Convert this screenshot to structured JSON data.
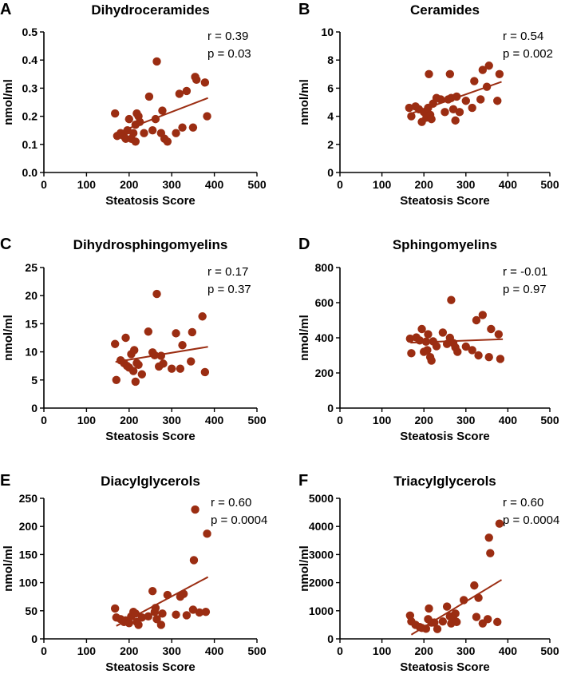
{
  "chart_data": [
    {
      "type": "scatter",
      "letter": "A",
      "title": "Dihydroceramides",
      "xlabel": "Steatosis Score",
      "ylabel": "nmol/ml",
      "xlim": [
        0,
        500
      ],
      "ylim": [
        0,
        0.5
      ],
      "xticks": [
        "0",
        "100",
        "200",
        "300",
        "400",
        "500"
      ],
      "yticks": [
        "0.0",
        "0.1",
        "0.2",
        "0.3",
        "0.4",
        "0.5"
      ],
      "stats": {
        "r": "r = 0.39",
        "p": "p = 0.03"
      },
      "color": "#9B2D12",
      "trend": [
        [
          170,
          0.14
        ],
        [
          385,
          0.265
        ]
      ],
      "points": [
        [
          167,
          0.21
        ],
        [
          172,
          0.13
        ],
        [
          180,
          0.14
        ],
        [
          187,
          0.13
        ],
        [
          192,
          0.12
        ],
        [
          196,
          0.15
        ],
        [
          200,
          0.19
        ],
        [
          205,
          0.12
        ],
        [
          210,
          0.14
        ],
        [
          215,
          0.11
        ],
        [
          215,
          0.17
        ],
        [
          218,
          0.21
        ],
        [
          222,
          0.2
        ],
        [
          225,
          0.18
        ],
        [
          235,
          0.14
        ],
        [
          247,
          0.27
        ],
        [
          255,
          0.15
        ],
        [
          262,
          0.19
        ],
        [
          265,
          0.395
        ],
        [
          275,
          0.14
        ],
        [
          278,
          0.22
        ],
        [
          283,
          0.12
        ],
        [
          290,
          0.11
        ],
        [
          310,
          0.14
        ],
        [
          318,
          0.28
        ],
        [
          325,
          0.16
        ],
        [
          335,
          0.29
        ],
        [
          350,
          0.16
        ],
        [
          355,
          0.34
        ],
        [
          358,
          0.33
        ],
        [
          378,
          0.32
        ],
        [
          383,
          0.2
        ]
      ]
    },
    {
      "type": "scatter",
      "letter": "B",
      "title": "Ceramides",
      "xlabel": "Steatosis Score",
      "ylabel": "nmol/ml",
      "xlim": [
        0,
        500
      ],
      "ylim": [
        0,
        10
      ],
      "xticks": [
        "0",
        "100",
        "200",
        "300",
        "400",
        "500"
      ],
      "yticks": [
        "0",
        "2",
        "4",
        "6",
        "8",
        "10"
      ],
      "stats": {
        "r": "r = 0.54",
        "p": "p = 0.002"
      },
      "color": "#9B2D12",
      "trend": [
        [
          170,
          4.2
        ],
        [
          385,
          6.45
        ]
      ],
      "points": [
        [
          165,
          4.6
        ],
        [
          170,
          4.0
        ],
        [
          180,
          4.7
        ],
        [
          188,
          4.5
        ],
        [
          195,
          3.6
        ],
        [
          200,
          4.3
        ],
        [
          206,
          3.9
        ],
        [
          210,
          4.6
        ],
        [
          212,
          7.0
        ],
        [
          215,
          4.1
        ],
        [
          218,
          3.8
        ],
        [
          222,
          4.9
        ],
        [
          230,
          5.3
        ],
        [
          240,
          5.2
        ],
        [
          250,
          4.3
        ],
        [
          258,
          5.2
        ],
        [
          262,
          7.0
        ],
        [
          265,
          5.3
        ],
        [
          270,
          4.5
        ],
        [
          275,
          3.7
        ],
        [
          278,
          5.4
        ],
        [
          285,
          4.3
        ],
        [
          300,
          5.1
        ],
        [
          315,
          4.6
        ],
        [
          320,
          6.5
        ],
        [
          335,
          5.2
        ],
        [
          340,
          7.3
        ],
        [
          350,
          6.1
        ],
        [
          355,
          7.6
        ],
        [
          375,
          5.1
        ],
        [
          380,
          7.0
        ]
      ]
    },
    {
      "type": "scatter",
      "letter": "C",
      "title": "Dihydrosphingomyelins",
      "xlabel": "Steatosis Score",
      "ylabel": "nmol/ml",
      "xlim": [
        0,
        500
      ],
      "ylim": [
        0,
        25
      ],
      "xticks": [
        "0",
        "100",
        "200",
        "300",
        "400",
        "500"
      ],
      "yticks": [
        "0",
        "5",
        "10",
        "15",
        "20",
        "25"
      ],
      "stats": {
        "r": "r = 0.17",
        "p": "p = 0.37"
      },
      "color": "#9B2D12",
      "trend": [
        [
          168,
          8.2
        ],
        [
          385,
          10.9
        ]
      ],
      "points": [
        [
          167,
          11.4
        ],
        [
          170,
          5.0
        ],
        [
          180,
          8.5
        ],
        [
          188,
          8.0
        ],
        [
          192,
          12.5
        ],
        [
          195,
          7.5
        ],
        [
          200,
          7.2
        ],
        [
          205,
          9.6
        ],
        [
          210,
          6.6
        ],
        [
          212,
          10.3
        ],
        [
          215,
          4.7
        ],
        [
          218,
          8.0
        ],
        [
          222,
          7.7
        ],
        [
          230,
          6.0
        ],
        [
          245,
          13.6
        ],
        [
          255,
          9.9
        ],
        [
          260,
          9.4
        ],
        [
          265,
          20.3
        ],
        [
          270,
          7.4
        ],
        [
          275,
          9.3
        ],
        [
          280,
          7.9
        ],
        [
          300,
          7.0
        ],
        [
          310,
          13.3
        ],
        [
          320,
          7.0
        ],
        [
          325,
          11.2
        ],
        [
          345,
          8.3
        ],
        [
          348,
          13.5
        ],
        [
          372,
          16.3
        ],
        [
          378,
          6.4
        ]
      ]
    },
    {
      "type": "scatter",
      "letter": "D",
      "title": "Sphingomyelins",
      "xlabel": "Steatosis Score",
      "ylabel": "nmol/ml",
      "xlim": [
        0,
        500
      ],
      "ylim": [
        0,
        800
      ],
      "xticks": [
        "0",
        "100",
        "200",
        "300",
        "400",
        "500"
      ],
      "yticks": [
        "0",
        "200",
        "400",
        "600",
        "800"
      ],
      "stats": {
        "r": "r = -0.01",
        "p": "p = 0.97"
      },
      "color": "#9B2D12",
      "trend": [
        [
          168,
          372
        ],
        [
          388,
          392
        ]
      ],
      "points": [
        [
          167,
          395
        ],
        [
          170,
          312
        ],
        [
          182,
          402
        ],
        [
          190,
          385
        ],
        [
          195,
          450
        ],
        [
          200,
          320
        ],
        [
          205,
          378
        ],
        [
          208,
          330
        ],
        [
          210,
          420
        ],
        [
          215,
          290
        ],
        [
          218,
          270
        ],
        [
          222,
          380
        ],
        [
          230,
          352
        ],
        [
          245,
          430
        ],
        [
          255,
          365
        ],
        [
          262,
          400
        ],
        [
          265,
          615
        ],
        [
          270,
          370
        ],
        [
          275,
          345
        ],
        [
          280,
          320
        ],
        [
          300,
          350
        ],
        [
          315,
          330
        ],
        [
          325,
          500
        ],
        [
          330,
          300
        ],
        [
          340,
          530
        ],
        [
          355,
          290
        ],
        [
          360,
          450
        ],
        [
          378,
          420
        ],
        [
          382,
          280
        ]
      ]
    },
    {
      "type": "scatter",
      "letter": "E",
      "title": "Diacylglycerols",
      "xlabel": "Steatosis Score",
      "ylabel": "nmol/ml",
      "xlim": [
        0,
        500
      ],
      "ylim": [
        0,
        250
      ],
      "xticks": [
        "0",
        "100",
        "200",
        "300",
        "400",
        "500"
      ],
      "yticks": [
        "0",
        "50",
        "100",
        "150",
        "200",
        "250"
      ],
      "stats": {
        "r": "r = 0.60",
        "p": "p = 0.0004"
      },
      "color": "#9B2D12",
      "trend": [
        [
          170,
          23
        ],
        [
          385,
          110
        ]
      ],
      "points": [
        [
          167,
          54
        ],
        [
          170,
          38
        ],
        [
          180,
          35
        ],
        [
          188,
          30
        ],
        [
          192,
          33
        ],
        [
          200,
          28
        ],
        [
          205,
          40
        ],
        [
          210,
          48
        ],
        [
          215,
          45
        ],
        [
          218,
          30
        ],
        [
          222,
          25
        ],
        [
          230,
          38
        ],
        [
          245,
          40
        ],
        [
          255,
          85
        ],
        [
          260,
          48
        ],
        [
          262,
          55
        ],
        [
          265,
          35
        ],
        [
          275,
          25
        ],
        [
          278,
          45
        ],
        [
          290,
          78
        ],
        [
          310,
          43
        ],
        [
          320,
          75
        ],
        [
          328,
          80
        ],
        [
          335,
          42
        ],
        [
          350,
          52
        ],
        [
          352,
          140
        ],
        [
          355,
          230
        ],
        [
          365,
          47
        ],
        [
          380,
          48
        ],
        [
          383,
          187
        ]
      ]
    },
    {
      "type": "scatter",
      "letter": "F",
      "title": "Triacylglycerols",
      "xlabel": "Steatosis Score",
      "ylabel": "nmol/ml",
      "xlim": [
        0,
        500
      ],
      "ylim": [
        0,
        5000
      ],
      "xticks": [
        "0",
        "100",
        "200",
        "300",
        "400",
        "500"
      ],
      "yticks": [
        "0",
        "1000",
        "2000",
        "3000",
        "4000",
        "5000"
      ],
      "stats": {
        "r": "r = 0.60",
        "p": "p = 0.0004"
      },
      "color": "#9B2D12",
      "trend": [
        [
          170,
          150
        ],
        [
          385,
          2100
        ]
      ],
      "points": [
        [
          167,
          830
        ],
        [
          170,
          620
        ],
        [
          180,
          500
        ],
        [
          190,
          420
        ],
        [
          195,
          390
        ],
        [
          205,
          360
        ],
        [
          210,
          700
        ],
        [
          212,
          1080
        ],
        [
          218,
          580
        ],
        [
          225,
          580
        ],
        [
          232,
          350
        ],
        [
          245,
          620
        ],
        [
          255,
          1150
        ],
        [
          262,
          800
        ],
        [
          265,
          550
        ],
        [
          270,
          700
        ],
        [
          275,
          900
        ],
        [
          278,
          600
        ],
        [
          295,
          1380
        ],
        [
          320,
          1900
        ],
        [
          325,
          780
        ],
        [
          330,
          1460
        ],
        [
          340,
          550
        ],
        [
          352,
          700
        ],
        [
          355,
          3600
        ],
        [
          358,
          3050
        ],
        [
          375,
          600
        ],
        [
          380,
          4100
        ]
      ]
    }
  ]
}
